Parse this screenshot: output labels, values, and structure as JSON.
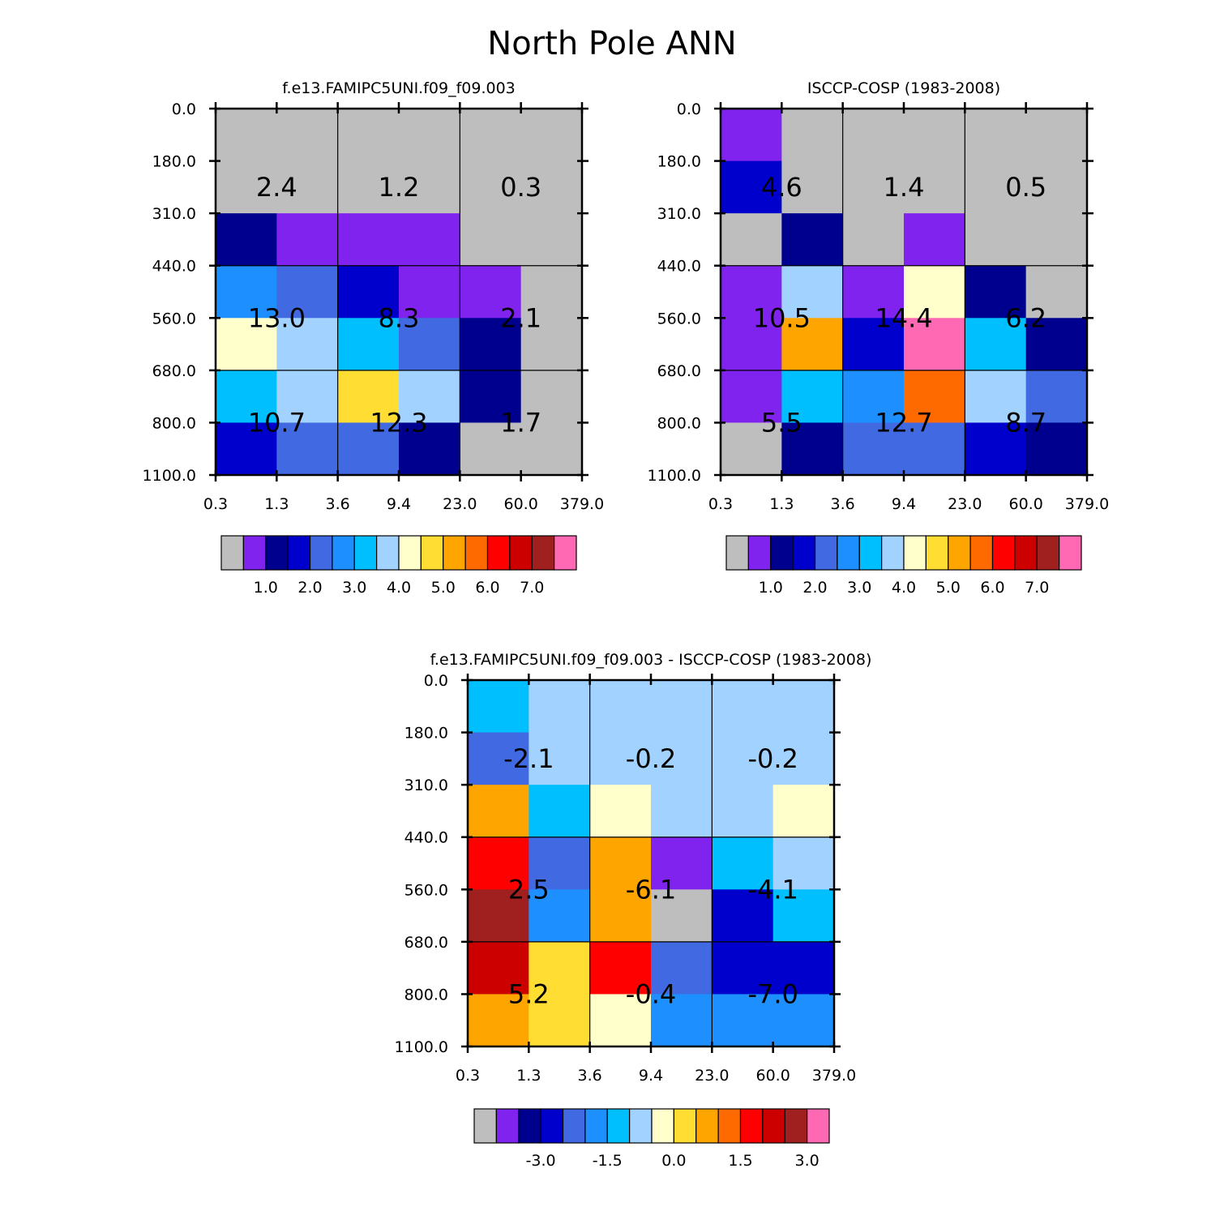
{
  "page_title": "North Pole ANN",
  "palette": {
    "grey": "#bebebe",
    "purple": "#8123ee",
    "navy": "#00008f",
    "blue": "#0000cd",
    "royal": "#4169e1",
    "dodger": "#1e8fff",
    "sky": "#00bfff",
    "light": "#a2d2ff",
    "cream": "#ffffcb",
    "yellow": "#ffdd33",
    "orange": "#ffa500",
    "darkorange": "#ff6a00",
    "red": "#ff0000",
    "darkred": "#cd0000",
    "brown": "#a02020",
    "pink": "#ff69b4"
  },
  "chart_data": [
    {
      "type": "heatmap",
      "title": "f.e13.FAMIPC5UNI.f09_f09.003",
      "x_ticks": [
        "0.3",
        "1.3",
        "3.6",
        "9.4",
        "23.0",
        "60.0",
        "379.0"
      ],
      "y_ticks": [
        "0.0",
        "180.0",
        "310.0",
        "440.0",
        "560.0",
        "680.0",
        "800.0",
        "1100.0"
      ],
      "cell_colors": [
        [
          "grey",
          "grey",
          "grey",
          "grey",
          "grey",
          "grey"
        ],
        [
          "grey",
          "grey",
          "grey",
          "grey",
          "grey",
          "grey"
        ],
        [
          "navy",
          "purple",
          "purple",
          "purple",
          "grey",
          "grey"
        ],
        [
          "dodger",
          "royal",
          "blue",
          "purple",
          "purple",
          "grey"
        ],
        [
          "cream",
          "light",
          "sky",
          "royal",
          "navy",
          "grey"
        ],
        [
          "sky",
          "light",
          "yellow",
          "light",
          "navy",
          "grey"
        ],
        [
          "blue",
          "royal",
          "royal",
          "navy",
          "grey",
          "grey"
        ]
      ],
      "block_values": [
        [
          "2.4",
          "1.2",
          "0.3"
        ],
        [
          "13.0",
          "8.3",
          "2.1"
        ],
        [
          "10.7",
          "12.3",
          "1.7"
        ]
      ],
      "colorbar": {
        "colors": [
          "grey",
          "purple",
          "navy",
          "blue",
          "royal",
          "dodger",
          "sky",
          "light",
          "cream",
          "yellow",
          "orange",
          "darkorange",
          "red",
          "darkred",
          "brown",
          "pink"
        ],
        "labels": [
          "1.0",
          "2.0",
          "3.0",
          "4.0",
          "5.0",
          "6.0",
          "7.0"
        ],
        "label_boundaries": [
          2,
          4,
          6,
          8,
          10,
          12,
          14
        ]
      }
    },
    {
      "type": "heatmap",
      "title": "ISCCP-COSP (1983-2008)",
      "x_ticks": [
        "0.3",
        "1.3",
        "3.6",
        "9.4",
        "23.0",
        "60.0",
        "379.0"
      ],
      "y_ticks": [
        "0.0",
        "180.0",
        "310.0",
        "440.0",
        "560.0",
        "680.0",
        "800.0",
        "1100.0"
      ],
      "cell_colors": [
        [
          "purple",
          "grey",
          "grey",
          "grey",
          "grey",
          "grey"
        ],
        [
          "blue",
          "grey",
          "grey",
          "grey",
          "grey",
          "grey"
        ],
        [
          "grey",
          "navy",
          "grey",
          "purple",
          "grey",
          "grey"
        ],
        [
          "purple",
          "light",
          "purple",
          "cream",
          "navy",
          "grey"
        ],
        [
          "purple",
          "orange",
          "blue",
          "pink",
          "sky",
          "navy"
        ],
        [
          "purple",
          "sky",
          "dodger",
          "darkorange",
          "light",
          "royal"
        ],
        [
          "grey",
          "navy",
          "royal",
          "royal",
          "blue",
          "navy"
        ]
      ],
      "block_values": [
        [
          "4.6",
          "1.4",
          "0.5"
        ],
        [
          "10.5",
          "14.4",
          "6.2"
        ],
        [
          "5.5",
          "12.7",
          "8.7"
        ]
      ],
      "colorbar": {
        "colors": [
          "grey",
          "purple",
          "navy",
          "blue",
          "royal",
          "dodger",
          "sky",
          "light",
          "cream",
          "yellow",
          "orange",
          "darkorange",
          "red",
          "darkred",
          "brown",
          "pink"
        ],
        "labels": [
          "1.0",
          "2.0",
          "3.0",
          "4.0",
          "5.0",
          "6.0",
          "7.0"
        ],
        "label_boundaries": [
          2,
          4,
          6,
          8,
          10,
          12,
          14
        ]
      }
    },
    {
      "type": "heatmap",
      "title": "f.e13.FAMIPC5UNI.f09_f09.003 - ISCCP-COSP (1983-2008)",
      "x_ticks": [
        "0.3",
        "1.3",
        "3.6",
        "9.4",
        "23.0",
        "60.0",
        "379.0"
      ],
      "y_ticks": [
        "0.0",
        "180.0",
        "310.0",
        "440.0",
        "560.0",
        "680.0",
        "800.0",
        "1100.0"
      ],
      "cell_colors": [
        [
          "sky",
          "light",
          "light",
          "light",
          "light",
          "light"
        ],
        [
          "royal",
          "light",
          "light",
          "light",
          "light",
          "light"
        ],
        [
          "orange",
          "sky",
          "cream",
          "light",
          "light",
          "cream"
        ],
        [
          "red",
          "royal",
          "orange",
          "purple",
          "sky",
          "light"
        ],
        [
          "brown",
          "dodger",
          "orange",
          "grey",
          "blue",
          "sky"
        ],
        [
          "darkred",
          "yellow",
          "red",
          "royal",
          "blue",
          "blue"
        ],
        [
          "orange",
          "yellow",
          "cream",
          "dodger",
          "dodger",
          "dodger"
        ]
      ],
      "block_values": [
        [
          "-2.1",
          "-0.2",
          "-0.2"
        ],
        [
          "2.5",
          "-6.1",
          "-4.1"
        ],
        [
          "5.2",
          "-0.4",
          "-7.0"
        ]
      ],
      "colorbar": {
        "colors": [
          "grey",
          "purple",
          "navy",
          "blue",
          "royal",
          "dodger",
          "sky",
          "light",
          "cream",
          "yellow",
          "orange",
          "darkorange",
          "red",
          "darkred",
          "brown",
          "pink"
        ],
        "labels": [
          "-3.0",
          "-1.5",
          "0.0",
          "1.5",
          "3.0"
        ],
        "label_boundaries": [
          3,
          6,
          9,
          12,
          15
        ]
      }
    }
  ]
}
